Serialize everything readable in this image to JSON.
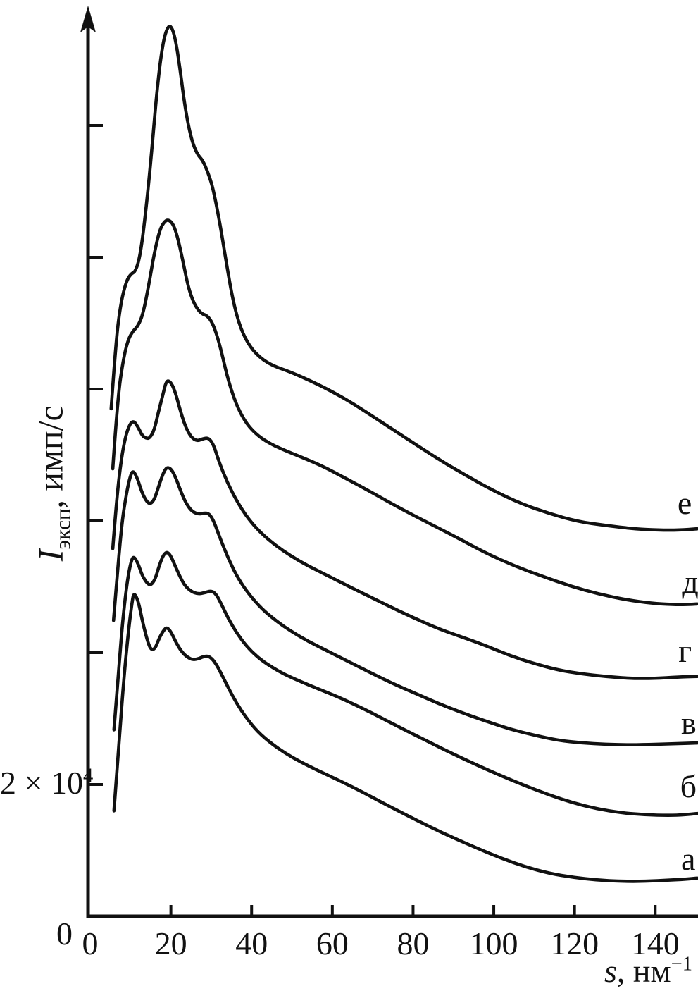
{
  "figure": {
    "background": "#ffffff",
    "line_color": "#111111"
  },
  "chart_data": {
    "type": "line",
    "title": "",
    "grid": false,
    "xlabel": {
      "variable": "s",
      "unit": ", нм",
      "exponent": "−1"
    },
    "ylabel": {
      "variable": "I",
      "subscript": "эксп",
      "unit": ", имп/с"
    },
    "x_origin_label": "0",
    "y_origin_label": "0",
    "y_axis_label_2e4": {
      "base": "2 × 10",
      "exp": "4",
      "value": 20000
    },
    "xlim": [
      0,
      151
    ],
    "ylim": [
      0,
      138000
    ],
    "x_ticks": [
      0,
      20,
      40,
      60,
      80,
      100,
      120,
      140
    ],
    "y_ticks_1e4": [
      2,
      4,
      6,
      8,
      10,
      12
    ],
    "x_units": "нм⁻¹",
    "y_units": "имп/с, ×10⁴",
    "legend_position": "labels right of each curve",
    "series": [
      {
        "name": "а",
        "label_pos": {
          "s": 148.2,
          "I": 0.86
        },
        "points": [
          [
            5.9,
            1.6
          ],
          [
            7.3,
            2.78
          ],
          [
            8.4,
            3.64
          ],
          [
            9.4,
            4.28
          ],
          [
            10.3,
            4.73
          ],
          [
            10.8,
            4.92
          ],
          [
            11.9,
            4.79
          ],
          [
            12.9,
            4.49
          ],
          [
            14.0,
            4.22
          ],
          [
            15.0,
            4.04
          ],
          [
            16.1,
            4.06
          ],
          [
            17.1,
            4.22
          ],
          [
            18.1,
            4.33
          ],
          [
            19.0,
            4.39
          ],
          [
            20.1,
            4.31
          ],
          [
            21.3,
            4.15
          ],
          [
            22.7,
            4.01
          ],
          [
            24.1,
            3.93
          ],
          [
            25.5,
            3.89
          ],
          [
            27.0,
            3.91
          ],
          [
            28.4,
            3.95
          ],
          [
            29.7,
            3.94
          ],
          [
            31.1,
            3.84
          ],
          [
            32.5,
            3.68
          ],
          [
            34.2,
            3.47
          ],
          [
            36.3,
            3.23
          ],
          [
            38.7,
            3.01
          ],
          [
            41.5,
            2.8
          ],
          [
            44.7,
            2.63
          ],
          [
            48.2,
            2.48
          ],
          [
            52.2,
            2.34
          ],
          [
            56.5,
            2.21
          ],
          [
            61.4,
            2.07
          ],
          [
            66.7,
            1.91
          ],
          [
            72.2,
            1.73
          ],
          [
            78.2,
            1.54
          ],
          [
            84.1,
            1.36
          ],
          [
            90.0,
            1.19
          ],
          [
            96.0,
            1.03
          ],
          [
            101.9,
            0.88
          ],
          [
            107.8,
            0.75
          ],
          [
            113.8,
            0.65
          ],
          [
            119.7,
            0.59
          ],
          [
            125.6,
            0.55
          ],
          [
            131.6,
            0.53
          ],
          [
            137.5,
            0.53
          ],
          [
            143.4,
            0.55
          ],
          [
            147.3,
            0.56
          ],
          [
            150.4,
            0.58
          ]
        ]
      },
      {
        "name": "б",
        "label_pos": {
          "s": 148.2,
          "I": 1.96
        },
        "points": [
          [
            5.9,
            2.83
          ],
          [
            7.2,
            3.85
          ],
          [
            8.2,
            4.58
          ],
          [
            9.2,
            5.09
          ],
          [
            10.1,
            5.38
          ],
          [
            10.8,
            5.47
          ],
          [
            11.9,
            5.35
          ],
          [
            12.9,
            5.17
          ],
          [
            14.0,
            5.06
          ],
          [
            15.0,
            5.02
          ],
          [
            16.1,
            5.11
          ],
          [
            17.1,
            5.32
          ],
          [
            18.1,
            5.48
          ],
          [
            19.0,
            5.53
          ],
          [
            19.9,
            5.48
          ],
          [
            20.9,
            5.34
          ],
          [
            22.2,
            5.16
          ],
          [
            23.4,
            5.02
          ],
          [
            25.0,
            4.93
          ],
          [
            26.7,
            4.89
          ],
          [
            28.4,
            4.91
          ],
          [
            30.0,
            4.94
          ],
          [
            31.2,
            4.89
          ],
          [
            32.5,
            4.74
          ],
          [
            34.2,
            4.52
          ],
          [
            36.3,
            4.3
          ],
          [
            38.7,
            4.1
          ],
          [
            41.5,
            3.93
          ],
          [
            44.7,
            3.79
          ],
          [
            48.2,
            3.67
          ],
          [
            52.2,
            3.56
          ],
          [
            56.5,
            3.45
          ],
          [
            61.4,
            3.33
          ],
          [
            66.7,
            3.18
          ],
          [
            72.2,
            3.01
          ],
          [
            78.2,
            2.82
          ],
          [
            84.1,
            2.64
          ],
          [
            90.0,
            2.46
          ],
          [
            96.0,
            2.29
          ],
          [
            101.9,
            2.13
          ],
          [
            107.8,
            1.98
          ],
          [
            113.8,
            1.84
          ],
          [
            119.7,
            1.72
          ],
          [
            125.6,
            1.63
          ],
          [
            131.6,
            1.57
          ],
          [
            137.5,
            1.54
          ],
          [
            143.4,
            1.53
          ],
          [
            147.3,
            1.54
          ],
          [
            150.4,
            1.56
          ]
        ]
      },
      {
        "name": "в",
        "label_pos": {
          "s": 148.3,
          "I": 2.92
        },
        "points": [
          [
            5.8,
            4.49
          ],
          [
            7.0,
            5.4
          ],
          [
            8.0,
            6.04
          ],
          [
            9.1,
            6.45
          ],
          [
            9.9,
            6.67
          ],
          [
            10.6,
            6.77
          ],
          [
            11.7,
            6.65
          ],
          [
            12.7,
            6.45
          ],
          [
            13.8,
            6.31
          ],
          [
            14.8,
            6.25
          ],
          [
            15.9,
            6.32
          ],
          [
            16.9,
            6.51
          ],
          [
            18.0,
            6.71
          ],
          [
            18.8,
            6.8
          ],
          [
            19.5,
            6.81
          ],
          [
            20.4,
            6.76
          ],
          [
            21.5,
            6.61
          ],
          [
            22.7,
            6.41
          ],
          [
            23.9,
            6.25
          ],
          [
            25.3,
            6.14
          ],
          [
            26.9,
            6.1
          ],
          [
            28.3,
            6.12
          ],
          [
            29.5,
            6.11
          ],
          [
            30.7,
            5.99
          ],
          [
            32.1,
            5.75
          ],
          [
            34.2,
            5.43
          ],
          [
            36.6,
            5.13
          ],
          [
            39.4,
            4.88
          ],
          [
            42.6,
            4.66
          ],
          [
            46.1,
            4.48
          ],
          [
            49.9,
            4.32
          ],
          [
            54.1,
            4.17
          ],
          [
            58.6,
            4.03
          ],
          [
            63.5,
            3.88
          ],
          [
            68.7,
            3.72
          ],
          [
            74.3,
            3.55
          ],
          [
            80.3,
            3.39
          ],
          [
            86.2,
            3.23
          ],
          [
            92.1,
            3.09
          ],
          [
            98.1,
            2.96
          ],
          [
            104.0,
            2.84
          ],
          [
            109.9,
            2.75
          ],
          [
            115.9,
            2.67
          ],
          [
            121.8,
            2.63
          ],
          [
            127.7,
            2.61
          ],
          [
            133.8,
            2.6
          ],
          [
            140.0,
            2.61
          ],
          [
            145.5,
            2.62
          ],
          [
            150.4,
            2.63
          ]
        ]
      },
      {
        "name": "г",
        "label_pos": {
          "s": 147.4,
          "I": 4.01
        },
        "points": [
          [
            5.6,
            5.58
          ],
          [
            6.6,
            6.36
          ],
          [
            7.7,
            6.93
          ],
          [
            8.7,
            7.27
          ],
          [
            9.8,
            7.47
          ],
          [
            10.8,
            7.52
          ],
          [
            11.9,
            7.42
          ],
          [
            12.9,
            7.29
          ],
          [
            14.0,
            7.25
          ],
          [
            14.8,
            7.26
          ],
          [
            15.9,
            7.38
          ],
          [
            16.9,
            7.65
          ],
          [
            18.0,
            7.91
          ],
          [
            18.8,
            8.11
          ],
          [
            19.5,
            8.13
          ],
          [
            20.4,
            8.06
          ],
          [
            21.3,
            7.91
          ],
          [
            22.3,
            7.68
          ],
          [
            23.6,
            7.43
          ],
          [
            25.0,
            7.27
          ],
          [
            26.5,
            7.21
          ],
          [
            28.1,
            7.25
          ],
          [
            29.3,
            7.26
          ],
          [
            30.5,
            7.17
          ],
          [
            31.9,
            6.9
          ],
          [
            34.0,
            6.58
          ],
          [
            36.5,
            6.28
          ],
          [
            39.3,
            6.02
          ],
          [
            42.4,
            5.81
          ],
          [
            45.9,
            5.63
          ],
          [
            49.7,
            5.47
          ],
          [
            53.9,
            5.32
          ],
          [
            58.5,
            5.18
          ],
          [
            63.3,
            5.03
          ],
          [
            68.6,
            4.87
          ],
          [
            74.2,
            4.7
          ],
          [
            80.1,
            4.53
          ],
          [
            86.0,
            4.37
          ],
          [
            92.0,
            4.24
          ],
          [
            97.9,
            4.11
          ],
          [
            103.8,
            3.96
          ],
          [
            109.8,
            3.84
          ],
          [
            115.7,
            3.74
          ],
          [
            121.6,
            3.68
          ],
          [
            127.6,
            3.64
          ],
          [
            133.8,
            3.61
          ],
          [
            140.0,
            3.61
          ],
          [
            145.5,
            3.63
          ],
          [
            150.4,
            3.64
          ]
        ]
      },
      {
        "name": "д",
        "label_pos": {
          "s": 148.7,
          "I": 5.06
        },
        "points": [
          [
            5.6,
            6.79
          ],
          [
            6.8,
            7.86
          ],
          [
            8.2,
            8.45
          ],
          [
            9.4,
            8.75
          ],
          [
            10.6,
            8.88
          ],
          [
            11.9,
            8.96
          ],
          [
            13.1,
            9.14
          ],
          [
            14.5,
            9.57
          ],
          [
            15.9,
            10.07
          ],
          [
            17.3,
            10.43
          ],
          [
            18.5,
            10.55
          ],
          [
            19.5,
            10.57
          ],
          [
            20.6,
            10.5
          ],
          [
            21.6,
            10.32
          ],
          [
            22.9,
            9.97
          ],
          [
            24.1,
            9.6
          ],
          [
            25.3,
            9.36
          ],
          [
            26.5,
            9.22
          ],
          [
            27.7,
            9.14
          ],
          [
            28.8,
            9.12
          ],
          [
            30.0,
            9.04
          ],
          [
            31.2,
            8.86
          ],
          [
            32.5,
            8.58
          ],
          [
            34.0,
            8.18
          ],
          [
            35.9,
            7.81
          ],
          [
            38.2,
            7.52
          ],
          [
            40.8,
            7.33
          ],
          [
            44.0,
            7.19
          ],
          [
            47.8,
            7.08
          ],
          [
            52.3,
            6.97
          ],
          [
            57.6,
            6.83
          ],
          [
            63.5,
            6.64
          ],
          [
            70.1,
            6.42
          ],
          [
            77.1,
            6.18
          ],
          [
            84.1,
            5.96
          ],
          [
            91.1,
            5.74
          ],
          [
            98.1,
            5.51
          ],
          [
            105.0,
            5.32
          ],
          [
            112.0,
            5.16
          ],
          [
            119.0,
            5.01
          ],
          [
            126.0,
            4.89
          ],
          [
            133.0,
            4.8
          ],
          [
            139.1,
            4.75
          ],
          [
            144.3,
            4.73
          ],
          [
            147.8,
            4.73
          ],
          [
            150.4,
            4.74
          ]
        ]
      },
      {
        "name": "е",
        "label_pos": {
          "s": 147.3,
          "I": 6.26
        },
        "points": [
          [
            5.2,
            7.7
          ],
          [
            6.3,
            8.66
          ],
          [
            7.5,
            9.28
          ],
          [
            8.9,
            9.63
          ],
          [
            10.1,
            9.75
          ],
          [
            11.2,
            9.78
          ],
          [
            12.4,
            10.02
          ],
          [
            13.8,
            10.7
          ],
          [
            15.2,
            11.57
          ],
          [
            16.6,
            12.57
          ],
          [
            18.0,
            13.26
          ],
          [
            19.2,
            13.5
          ],
          [
            20.1,
            13.51
          ],
          [
            21.1,
            13.32
          ],
          [
            22.2,
            12.89
          ],
          [
            23.2,
            12.41
          ],
          [
            24.3,
            12.0
          ],
          [
            25.5,
            11.71
          ],
          [
            26.7,
            11.55
          ],
          [
            27.9,
            11.47
          ],
          [
            29.1,
            11.3
          ],
          [
            30.2,
            11.1
          ],
          [
            31.2,
            10.82
          ],
          [
            32.3,
            10.46
          ],
          [
            33.7,
            9.93
          ],
          [
            35.4,
            9.33
          ],
          [
            37.3,
            8.91
          ],
          [
            39.6,
            8.64
          ],
          [
            42.2,
            8.47
          ],
          [
            45.4,
            8.35
          ],
          [
            49.2,
            8.27
          ],
          [
            53.7,
            8.15
          ],
          [
            58.8,
            8.0
          ],
          [
            64.9,
            7.79
          ],
          [
            71.9,
            7.51
          ],
          [
            78.9,
            7.23
          ],
          [
            85.9,
            6.95
          ],
          [
            92.8,
            6.7
          ],
          [
            99.8,
            6.46
          ],
          [
            106.8,
            6.26
          ],
          [
            113.8,
            6.11
          ],
          [
            120.8,
            5.99
          ],
          [
            127.7,
            5.93
          ],
          [
            134.7,
            5.88
          ],
          [
            140.8,
            5.86
          ],
          [
            146.0,
            5.86
          ],
          [
            150.4,
            5.88
          ]
        ]
      }
    ]
  }
}
